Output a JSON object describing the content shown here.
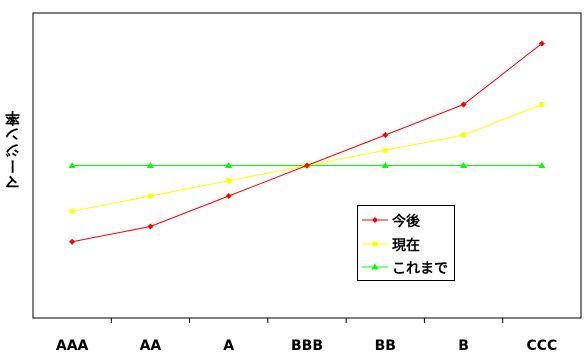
{
  "chart_data": {
    "type": "line",
    "ylabel": "マージン率",
    "xlabel": "",
    "categories": [
      "AAA",
      "AA",
      "A",
      "BBB",
      "BB",
      "B",
      "CCC"
    ],
    "ylim": [
      0,
      10
    ],
    "grid": false,
    "legend_position": "bottom-right",
    "series": [
      {
        "name": "今後",
        "color": "#ff0000",
        "marker": "diamond",
        "values": [
          2.5,
          3.0,
          4.0,
          5.0,
          6.0,
          7.0,
          9.0
        ]
      },
      {
        "name": "現在",
        "color": "#ffff00",
        "marker": "square",
        "values": [
          3.5,
          4.0,
          4.5,
          5.0,
          5.5,
          6.0,
          7.0
        ]
      },
      {
        "name": "これまで",
        "color": "#00ff00",
        "marker": "triangle",
        "values": [
          5.0,
          5.0,
          5.0,
          5.0,
          5.0,
          5.0,
          5.0
        ]
      }
    ]
  }
}
